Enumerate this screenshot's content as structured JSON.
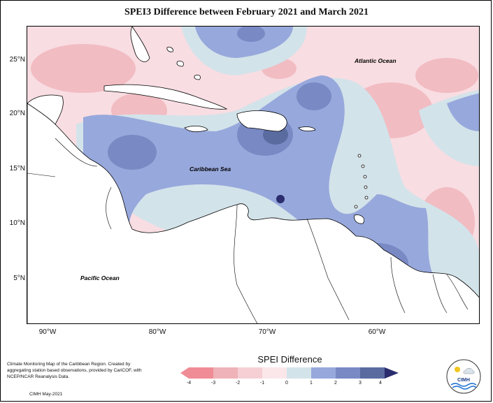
{
  "title": "SPEI3 Difference between February 2021 and March 2021",
  "map": {
    "lat_labels": [
      "25°N",
      "20°N",
      "15°N",
      "10°N",
      "5°N"
    ],
    "lon_labels": [
      "90°W",
      "80°W",
      "70°W",
      "60°W"
    ],
    "place_labels": {
      "atlantic": "Atlantic Ocean",
      "caribbean": "Caribbean Sea",
      "pacific": "Pacific Ocean"
    }
  },
  "legend": {
    "title": "SPEI Difference",
    "ticks": [
      "-4",
      "-3",
      "-2",
      "-1",
      "0",
      "1",
      "2",
      "3",
      "4"
    ],
    "colors": [
      "#f08c95",
      "#eeb2b8",
      "#f5cfd4",
      "#fbe6e9",
      "#d3e3ea",
      "#97a8dc",
      "#7889c4",
      "#5a6ba0",
      "#2b2d6e"
    ]
  },
  "credit": {
    "text": "Climate Monitoring Map of the Caribbean Region. Created by aggregating station based observations, provided by CariCOF, with NCEP/NCAR Reanalysis Data.",
    "date": "CIMH May-2021"
  },
  "logo": {
    "text": "CIMH"
  }
}
